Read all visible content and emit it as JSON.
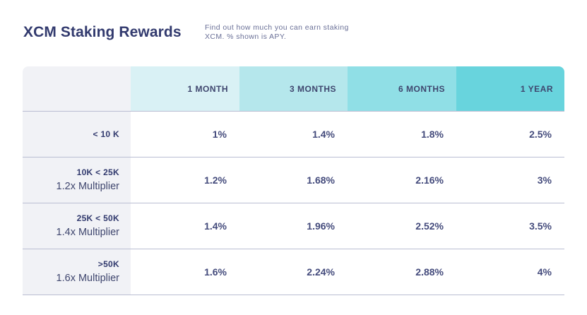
{
  "title": "XCM Staking Rewards",
  "subtitle": "Find out how much you can earn staking XCM. % shown is APY.",
  "columns": [
    "1 MONTH",
    "3 MONTHS",
    "6 MONTHS",
    "1 YEAR"
  ],
  "rows": [
    {
      "tier": "< 10 K",
      "multiplier": "",
      "values": [
        "1%",
        "1.4%",
        "1.8%",
        "2.5%"
      ]
    },
    {
      "tier": "10K < 25K",
      "multiplier": "1.2x Multiplier",
      "values": [
        "1.2%",
        "1.68%",
        "2.16%",
        "3%"
      ]
    },
    {
      "tier": "25K < 50K",
      "multiplier": "1.4x Multiplier",
      "values": [
        "1.4%",
        "1.96%",
        "2.52%",
        "3.5%"
      ]
    },
    {
      "tier": ">50K",
      "multiplier": "1.6x Multiplier",
      "values": [
        "1.6%",
        "2.24%",
        "2.88%",
        "4%"
      ]
    }
  ],
  "colors": {
    "header_1": "#d9f1f5",
    "header_2": "#b5e7ec",
    "header_3": "#90dfe6",
    "header_4": "#68d4dd",
    "label_column": "#f1f2f6",
    "text": "#323a6e"
  }
}
